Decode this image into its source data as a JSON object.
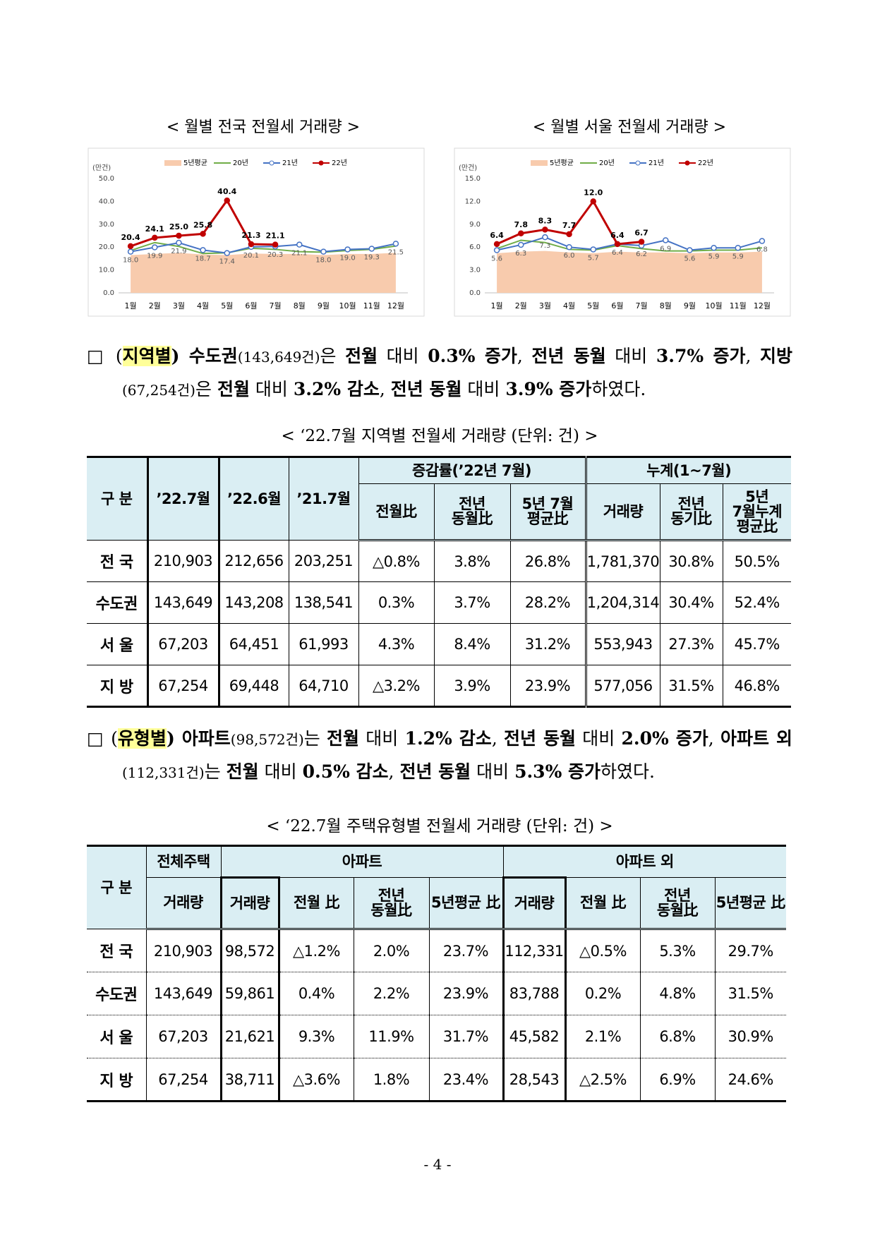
{
  "chart_data": [
    {
      "type": "line",
      "title": "< 월별 전국 전월세 거래량 >",
      "y_label": "(만건)",
      "categories": [
        "1월",
        "2월",
        "3월",
        "4월",
        "5월",
        "6월",
        "7월",
        "8월",
        "9월",
        "10월",
        "11월",
        "12월"
      ],
      "ylim": [
        0,
        50
      ],
      "yticks": [
        {
          "value": 0,
          "label": "0.0"
        },
        {
          "value": 10,
          "label": "10.0"
        },
        {
          "value": 20,
          "label": "20.0"
        },
        {
          "value": 30,
          "label": "30.0"
        },
        {
          "value": 40,
          "label": "40.0"
        },
        {
          "value": 50,
          "label": "50.0"
        }
      ],
      "series": [
        {
          "name": "5년평균",
          "color": "#f8cbad",
          "kind": "area",
          "values": [
            16.5,
            17,
            17.5,
            16.8,
            16.5,
            17.2,
            17,
            17,
            16.5,
            17,
            17,
            17.5
          ]
        },
        {
          "name": "20년",
          "color": "#70ad47",
          "kind": "line",
          "values": [
            18.5,
            22,
            20.3,
            17.2,
            17.5,
            19.5,
            19,
            18,
            17.8,
            18.5,
            19,
            20.5
          ]
        },
        {
          "name": "21년",
          "color": "#4472c4",
          "kind": "line",
          "marker": "open",
          "label_position": "below",
          "values": [
            18.0,
            19.9,
            21.9,
            18.7,
            17.4,
            20.1,
            20.3,
            21.1,
            18.0,
            19.0,
            19.3,
            21.5
          ],
          "value_labels": [
            "18.0",
            "19.9",
            "21.9",
            "18.7",
            "17.4",
            "20.1",
            "20.3",
            "21.1",
            "18.0",
            "19.0",
            "19.3",
            "21.5"
          ]
        },
        {
          "name": "22년",
          "color": "#c00000",
          "kind": "line",
          "marker": "filled",
          "label_position": "above",
          "values": [
            20.4,
            24.1,
            25.0,
            25.8,
            40.4,
            21.3,
            21.1,
            null,
            null,
            null,
            null,
            null
          ],
          "value_labels": [
            "20.4",
            "24.1",
            "25.0",
            "25.8",
            "40.4",
            "21.3",
            "21.1",
            null,
            null,
            null,
            null,
            null
          ]
        }
      ]
    },
    {
      "type": "line",
      "title": "< 월별 서울 전월세 거래량 >",
      "y_label": "(만건)",
      "categories": [
        "1월",
        "2월",
        "3월",
        "4월",
        "5월",
        "6월",
        "7월",
        "8월",
        "9월",
        "10월",
        "11월",
        "12월"
      ],
      "ylim": [
        0,
        15
      ],
      "yticks": [
        {
          "value": 0,
          "label": "0.0"
        },
        {
          "value": 3,
          "label": "3.0"
        },
        {
          "value": 6,
          "label": "6.0"
        },
        {
          "value": 9,
          "label": "9.0"
        },
        {
          "value": 12,
          "label": "12.0"
        },
        {
          "value": 15,
          "label": "15.0"
        }
      ],
      "series": [
        {
          "name": "5년평균",
          "color": "#f8cbad",
          "kind": "area",
          "values": [
            5.2,
            5.4,
            5.5,
            5.3,
            5.2,
            5.4,
            5.3,
            5.3,
            5.2,
            5.3,
            5.3,
            5.4
          ]
        },
        {
          "name": "20년",
          "color": "#70ad47",
          "kind": "line",
          "values": [
            5.8,
            6.9,
            6.6,
            5.7,
            5.6,
            6.2,
            5.8,
            5.5,
            5.5,
            5.6,
            5.6,
            5.9
          ]
        },
        {
          "name": "21년",
          "color": "#4472c4",
          "kind": "line",
          "marker": "open",
          "label_position": "below",
          "values": [
            5.6,
            6.3,
            7.3,
            6.0,
            5.7,
            6.4,
            6.2,
            6.9,
            5.6,
            5.9,
            5.9,
            6.8
          ],
          "value_labels": [
            "5.6",
            "6.3",
            "7.3",
            "6.0",
            "5.7",
            "6.4",
            "6.2",
            "6.9",
            "5.6",
            "5.9",
            "5.9",
            "6.8"
          ]
        },
        {
          "name": "22년",
          "color": "#c00000",
          "kind": "line",
          "marker": "filled",
          "label_position": "above",
          "values": [
            6.4,
            7.8,
            8.3,
            7.7,
            12.0,
            6.4,
            6.7,
            null,
            null,
            null,
            null,
            null
          ],
          "value_labels": [
            "6.4",
            "7.8",
            "8.3",
            "7.7",
            "12.0",
            "6.4",
            "6.7",
            null,
            null,
            null,
            null,
            null
          ]
        }
      ]
    }
  ],
  "paragraphs": [
    {
      "runs": [
        "□ (",
        "지역별",
        ") ",
        "수도권",
        "(143,649건)",
        "은 ",
        "전월",
        " 대비 ",
        "0.3% 증가",
        ", ",
        "전년 동월",
        " 대비 ",
        "3.7% 증가",
        ", ",
        "지방",
        "(67,254건)",
        "은 ",
        "전월",
        " 대비 ",
        "3.2% 감소",
        ", ",
        "전년 동월",
        " 대비 ",
        "3.9% 증가",
        "하였다."
      ]
    },
    {
      "runs": [
        "□ (",
        "유형별",
        ") ",
        "아파트",
        "(98,572건)",
        "는 ",
        "전월",
        " 대비 ",
        "1.2% 감소",
        ", ",
        "전년 동월",
        " 대비 ",
        "2.0% 증가",
        ", ",
        "아파트 외",
        "(112,331건)",
        "는 ",
        "전월",
        " 대비 ",
        "0.5% 감소",
        ", ",
        "전년 동월",
        " 대비 ",
        "5.3% 증가",
        "하였다."
      ]
    }
  ],
  "tables": [
    {
      "caption": "< ‘22.7월 지역별 전월세 거래량 (단위: 건) >",
      "header": {
        "label": "구 분",
        "columns": [
          "’22.7월",
          "’22.6월",
          "’21.7월"
        ],
        "groups": [
          {
            "title": "증감률(’22년 7월)",
            "cols": [
              "전월比",
              "전년\n동월比",
              "5년 7월\n평균比"
            ]
          },
          {
            "title": "누계(1~7월)",
            "cols": [
              "거래량",
              "전년\n동기比",
              "5년\n7월누계\n평균比"
            ]
          }
        ]
      },
      "rows": [
        {
          "label": "전 국",
          "cells": [
            "210,903",
            "212,656",
            "203,251",
            "△0.8%",
            "3.8%",
            "26.8%",
            "1,781,370",
            "30.8%",
            "50.5%"
          ]
        },
        {
          "label": "수도권",
          "cells": [
            "143,649",
            "143,208",
            "138,541",
            "0.3%",
            "3.7%",
            "28.2%",
            "1,204,314",
            "30.4%",
            "52.4%"
          ]
        },
        {
          "label": "서 울",
          "cells": [
            "67,203",
            "64,451",
            "61,993",
            "4.3%",
            "8.4%",
            "31.2%",
            "553,943",
            "27.3%",
            "45.7%"
          ]
        },
        {
          "label": "지 방",
          "cells": [
            "67,254",
            "69,448",
            "64,710",
            "△3.2%",
            "3.9%",
            "23.9%",
            "577,056",
            "31.5%",
            "46.8%"
          ]
        }
      ]
    },
    {
      "caption": "< ‘22.7월 주택유형별 전월세 거래량 (단위: 건) >",
      "header": {
        "label": "구 분",
        "groups": [
          {
            "title": "전체주택",
            "cols": [
              "거래량"
            ]
          },
          {
            "title": "아파트",
            "cols": [
              "거래량",
              "전월 比",
              "전년\n동월比",
              "5년평균 比"
            ]
          },
          {
            "title": "아파트 외",
            "cols": [
              "거래량",
              "전월 比",
              "전년\n동월比",
              "5년평균 比"
            ]
          }
        ]
      },
      "rows": [
        {
          "label": "전 국",
          "cells": [
            "210,903",
            "98,572",
            "△1.2%",
            "2.0%",
            "23.7%",
            "112,331",
            "△0.5%",
            "5.3%",
            "29.7%"
          ]
        },
        {
          "label": "수도권",
          "cells": [
            "143,649",
            "59,861",
            "0.4%",
            "2.2%",
            "23.9%",
            "83,788",
            "0.2%",
            "4.8%",
            "31.5%"
          ]
        },
        {
          "label": "서 울",
          "cells": [
            "67,203",
            "21,621",
            "9.3%",
            "11.9%",
            "31.7%",
            "45,582",
            "2.1%",
            "6.8%",
            "30.9%"
          ]
        },
        {
          "label": "지 방",
          "cells": [
            "67,254",
            "38,711",
            "△3.6%",
            "1.8%",
            "23.4%",
            "28,543",
            "△2.5%",
            "6.9%",
            "24.6%"
          ]
        }
      ]
    }
  ],
  "page_number": "- 4 -"
}
